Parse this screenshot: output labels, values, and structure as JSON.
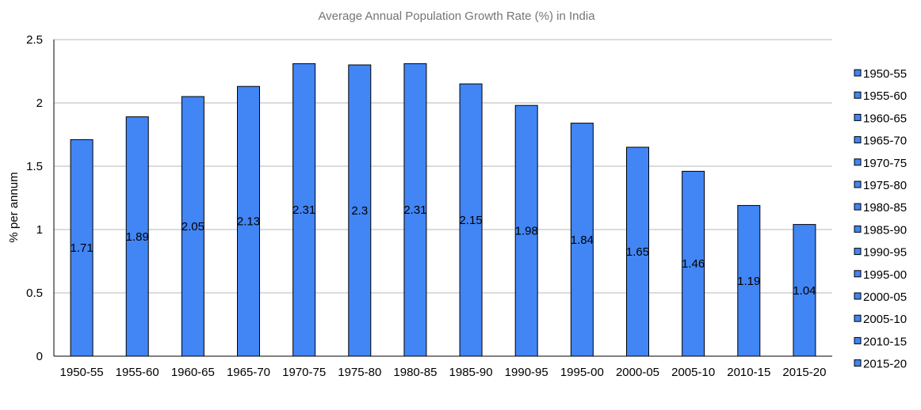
{
  "chart_data": {
    "type": "bar",
    "title": "Average Annual Population Growth Rate (%) in India",
    "ylabel": "% per annum",
    "xlabel": "",
    "categories": [
      "1950-55",
      "1955-60",
      "1960-65",
      "1965-70",
      "1970-75",
      "1975-80",
      "1980-85",
      "1985-90",
      "1990-95",
      "1995-00",
      "2000-05",
      "2005-10",
      "2010-15",
      "2015-20"
    ],
    "values": [
      1.71,
      1.89,
      2.05,
      2.13,
      2.31,
      2.3,
      2.31,
      2.15,
      1.98,
      1.84,
      1.65,
      1.46,
      1.19,
      1.04
    ],
    "value_labels": [
      "1.71",
      "1.89",
      "2.05",
      "2.13",
      "2.31",
      "2.3",
      "2.31",
      "2.15",
      "1.98",
      "1.84",
      "1.65",
      "1.46",
      "1.19",
      "1.04"
    ],
    "ylim": [
      0,
      2.5
    ],
    "yticks": [
      "0",
      "0.5",
      "1",
      "1.5",
      "2",
      "2.5"
    ],
    "grid": true,
    "legend_position": "right",
    "legend": [
      "1950-55",
      "1955-60",
      "1960-65",
      "1965-70",
      "1970-75",
      "1975-80",
      "1980-85",
      "1985-90",
      "1990-95",
      "1995-00",
      "2000-05",
      "2005-10",
      "2010-15",
      "2015-20"
    ],
    "bar_color": "#4285f4",
    "bar_border_color": "#000000",
    "grid_color": "#b7b7b7"
  }
}
